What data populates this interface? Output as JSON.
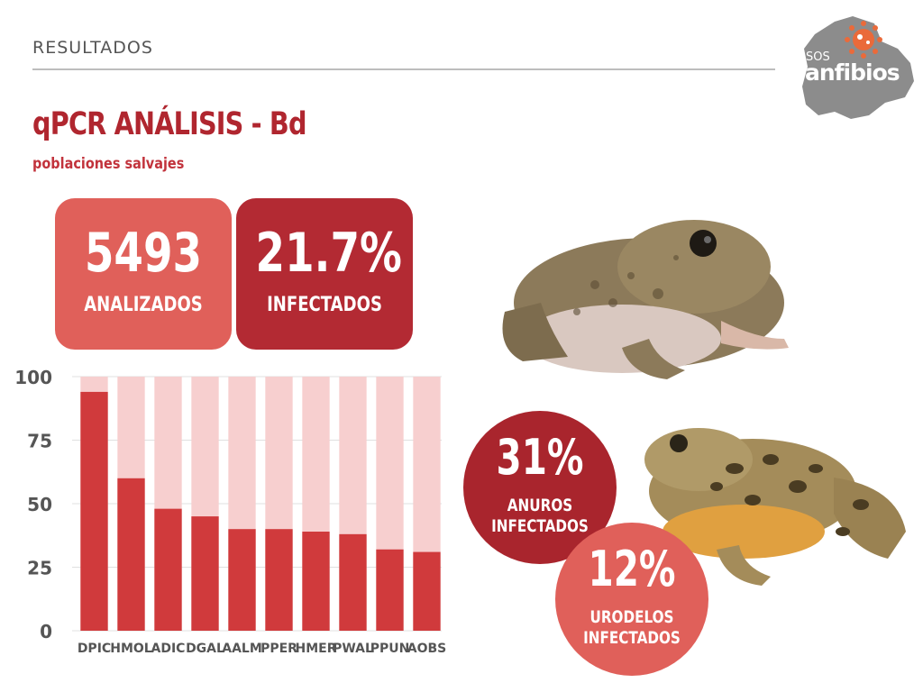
{
  "header": {
    "section": "RESULTADOS",
    "title": "qPCR ANÁLISIS - Bd",
    "subtitle": "poblaciones salvajes"
  },
  "logo": {
    "small": "SOS",
    "big": "anfibios"
  },
  "stats": {
    "analyzed": {
      "value": "5493",
      "label": "ANALIZADOS"
    },
    "infected": {
      "value": "21.7%",
      "label": "INFECTADOS"
    }
  },
  "circles": {
    "anuros": {
      "value": "31%",
      "line1": "ANUROS",
      "line2": "INFECTADOS"
    },
    "urodelos": {
      "value": "12%",
      "line1": "URODELOS",
      "line2": "INFECTADOS"
    }
  },
  "colors": {
    "infected_bar": "#d03a3c",
    "total_bar": "#f7cfcf",
    "accent": "#b0262f"
  },
  "chart_data": {
    "type": "bar",
    "categories": [
      "DPIC",
      "HMOL",
      "ADIC",
      "DGAL",
      "AALM",
      "PPER",
      "HMER",
      "PWAL",
      "PPUN",
      "AOBS"
    ],
    "series": [
      {
        "values": [
          94,
          60,
          48,
          45,
          40,
          40,
          39,
          38,
          32,
          31
        ]
      }
    ],
    "background_value": 100,
    "ylim": [
      0,
      100
    ],
    "yticks": [
      0,
      25,
      50,
      75,
      100
    ],
    "grid": true,
    "stacked_to_100": true
  }
}
